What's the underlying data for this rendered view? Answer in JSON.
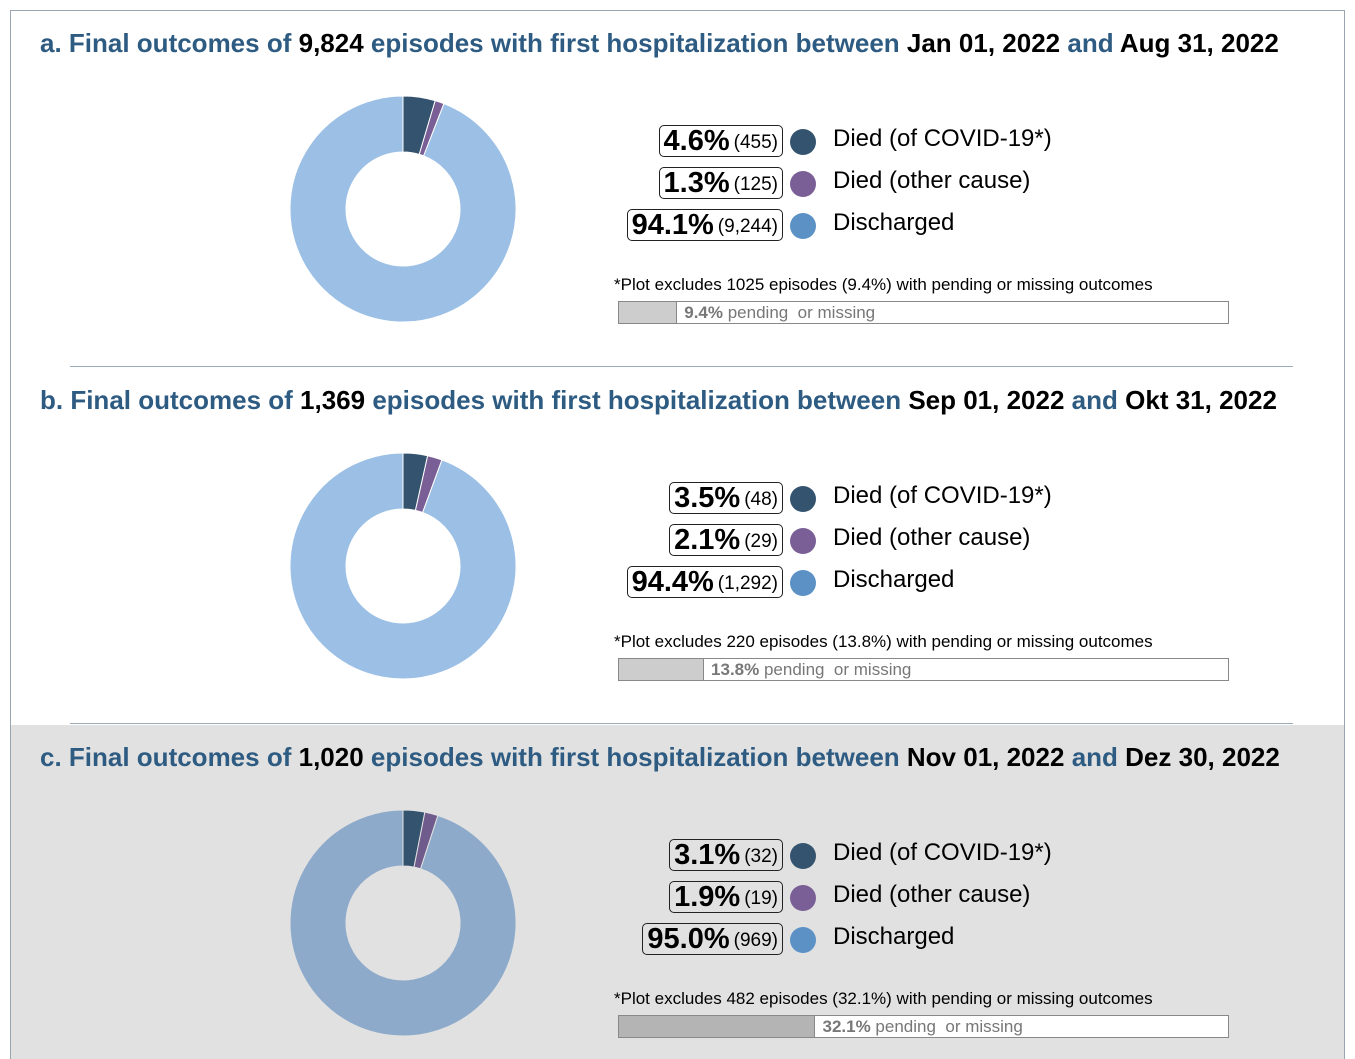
{
  "chart_data": [
    {
      "type": "pie",
      "title": [
        "a. Final outcomes of",
        "9,824",
        "episodes with first hospitalization between",
        "Jan 01, 2022",
        "and",
        "Aug 31, 2022"
      ],
      "categories": [
        "Died (of COVID-19*)",
        "Died (other cause)",
        "Discharged"
      ],
      "values": [
        4.6,
        1.3,
        94.1
      ],
      "value_labels": [
        "4.6%",
        "1.3%",
        "94.1%"
      ],
      "counts": [
        455,
        125,
        9244
      ],
      "count_labels": [
        "(455)",
        "(125)",
        "(9,244)"
      ],
      "colors": [
        "#34536e",
        "#7a5f96",
        "#9bbfe5"
      ],
      "legend_colors": [
        "#34536e",
        "#7a5f96",
        "#5b91c4"
      ],
      "note": "*Plot excludes 1025 episodes (9.4%) with pending or missing outcomes",
      "pending": {
        "value": 9.4,
        "label": "9.4%",
        "text": "pending  or missing"
      }
    },
    {
      "type": "pie",
      "title": [
        "b. Final outcomes of",
        "1,369",
        "episodes with first hospitalization between",
        "Sep 01, 2022",
        "and",
        "Okt 31, 2022"
      ],
      "categories": [
        "Died (of COVID-19*)",
        "Died (other cause)",
        "Discharged"
      ],
      "values": [
        3.5,
        2.1,
        94.4
      ],
      "value_labels": [
        "3.5%",
        "2.1%",
        "94.4%"
      ],
      "counts": [
        48,
        29,
        1292
      ],
      "count_labels": [
        "(48)",
        "(29)",
        "(1,292)"
      ],
      "colors": [
        "#34536e",
        "#7a5f96",
        "#9bbfe5"
      ],
      "legend_colors": [
        "#34536e",
        "#7a5f96",
        "#5b91c4"
      ],
      "note": "*Plot excludes 220 episodes (13.8%) with pending or missing outcomes",
      "pending": {
        "value": 13.8,
        "label": "13.8%",
        "text": "pending  or missing"
      }
    },
    {
      "type": "pie",
      "title": [
        "c. Final outcomes of",
        "1,020",
        "episodes with first hospitalization between",
        "Nov 01, 2022",
        "and",
        "Dez 30, 2022"
      ],
      "categories": [
        "Died (of COVID-19*)",
        "Died (other cause)",
        "Discharged"
      ],
      "values": [
        3.1,
        1.9,
        95.0
      ],
      "value_labels": [
        "3.1%",
        "1.9%",
        "95.0%"
      ],
      "counts": [
        32,
        19,
        969
      ],
      "count_labels": [
        "(32)",
        "(19)",
        "(969)"
      ],
      "colors": [
        "#34536e",
        "#6f5c8c",
        "#8eaaca"
      ],
      "legend_colors": [
        "#34536e",
        "#7a5f96",
        "#5b91c4"
      ],
      "note": "*Plot excludes 482 episodes (32.1%) with pending or missing outcomes",
      "pending": {
        "value": 32.1,
        "label": "32.1%",
        "text": "pending  or missing"
      }
    }
  ]
}
